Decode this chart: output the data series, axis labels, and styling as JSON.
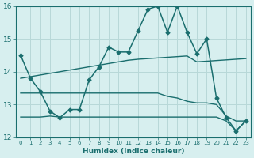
{
  "xlabel": "Humidex (Indice chaleur)",
  "xlim": [
    -0.5,
    23.5
  ],
  "ylim": [
    12,
    16
  ],
  "yticks": [
    12,
    13,
    14,
    15,
    16
  ],
  "xticks": [
    0,
    1,
    2,
    3,
    4,
    5,
    6,
    7,
    8,
    9,
    10,
    11,
    12,
    13,
    14,
    15,
    16,
    17,
    18,
    19,
    20,
    21,
    22,
    23
  ],
  "bg_color": "#d7efef",
  "grid_color": "#b8d8d8",
  "line_color": "#1a6e6e",
  "series": [
    {
      "x": [
        0,
        1,
        2,
        3,
        4,
        5,
        6,
        7,
        8,
        9,
        10,
        11,
        12,
        13,
        14,
        15,
        16,
        17,
        18,
        19,
        20,
        21,
        22,
        23
      ],
      "y": [
        14.5,
        13.8,
        13.4,
        12.8,
        12.6,
        12.85,
        12.85,
        13.75,
        14.15,
        14.75,
        14.6,
        14.6,
        15.25,
        15.9,
        16.0,
        15.2,
        16.0,
        15.2,
        14.55,
        15.0,
        13.2,
        12.6,
        12.2,
        12.5
      ],
      "marker": "D",
      "markersize": 2.5,
      "linewidth": 1.1
    },
    {
      "x": [
        0,
        1,
        2,
        3,
        4,
        5,
        6,
        7,
        8,
        9,
        10,
        11,
        12,
        13,
        14,
        15,
        16,
        17,
        18,
        19,
        20,
        21,
        22,
        23
      ],
      "y": [
        13.8,
        13.85,
        13.9,
        13.95,
        14.0,
        14.05,
        14.1,
        14.15,
        14.2,
        14.25,
        14.3,
        14.35,
        14.38,
        14.4,
        14.42,
        14.44,
        14.46,
        14.48,
        14.3,
        14.32,
        14.34,
        14.36,
        14.38,
        14.4
      ],
      "marker": null,
      "markersize": 0,
      "linewidth": 1.0
    },
    {
      "x": [
        0,
        1,
        2,
        3,
        4,
        5,
        6,
        7,
        8,
        9,
        10,
        11,
        12,
        13,
        14,
        15,
        16,
        17,
        18,
        19,
        20,
        21,
        22,
        23
      ],
      "y": [
        13.35,
        13.35,
        13.35,
        13.35,
        13.35,
        13.35,
        13.35,
        13.35,
        13.35,
        13.35,
        13.35,
        13.35,
        13.35,
        13.35,
        13.35,
        13.25,
        13.2,
        13.1,
        13.05,
        13.05,
        13.0,
        12.65,
        12.5,
        12.5
      ],
      "marker": null,
      "markersize": 0,
      "linewidth": 1.0
    },
    {
      "x": [
        0,
        1,
        2,
        3,
        4,
        5,
        6,
        7,
        8,
        9,
        10,
        11,
        12,
        13,
        14,
        15,
        16,
        17,
        18,
        19,
        20,
        21,
        22,
        23
      ],
      "y": [
        12.62,
        12.62,
        12.62,
        12.65,
        12.62,
        12.62,
        12.62,
        12.62,
        12.62,
        12.62,
        12.62,
        12.62,
        12.62,
        12.62,
        12.62,
        12.62,
        12.62,
        12.62,
        12.62,
        12.62,
        12.62,
        12.5,
        12.2,
        12.5
      ],
      "marker": null,
      "markersize": 0,
      "linewidth": 1.0
    }
  ]
}
